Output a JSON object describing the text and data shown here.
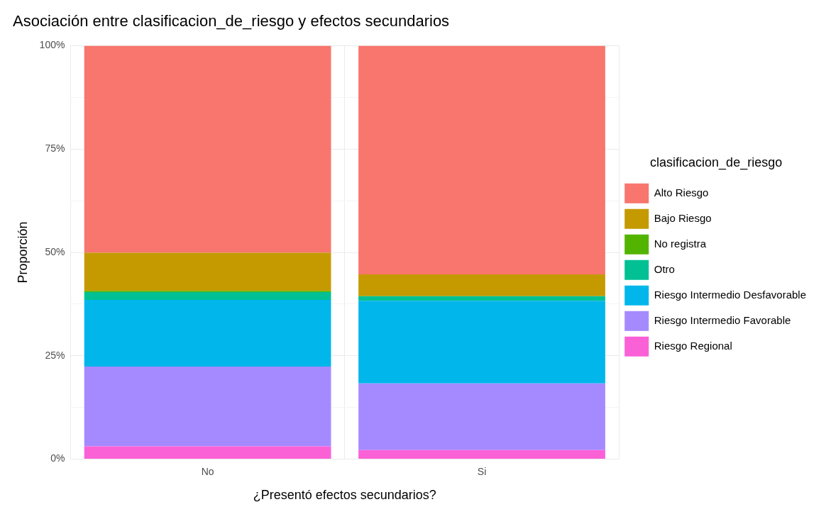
{
  "chart_data": {
    "type": "bar",
    "stacked": true,
    "title": "Asociación entre clasificacion_de_riesgo y efectos secundarios",
    "xlabel": "¿Presentó efectos secundarios?",
    "ylabel": "Proporción",
    "legend_title": "clasificacion_de_riesgo",
    "legend": "right",
    "grid": true,
    "categories": [
      "No",
      "Si"
    ],
    "ylim": [
      0,
      100
    ],
    "yticks": [
      {
        "value": 0,
        "label": "0%"
      },
      {
        "value": 12.5,
        "label": null
      },
      {
        "value": 25,
        "label": "25%"
      },
      {
        "value": 37.5,
        "label": null
      },
      {
        "value": 50,
        "label": "50%"
      },
      {
        "value": 62.5,
        "label": null
      },
      {
        "value": 75,
        "label": "75%"
      },
      {
        "value": 87.5,
        "label": null
      },
      {
        "value": 100,
        "label": "100%"
      }
    ],
    "series": [
      {
        "name": "Riesgo Regional",
        "color": "#fb61d7",
        "values": [
          3.1,
          2.2
        ]
      },
      {
        "name": "Riesgo Intermedio Favorable",
        "color": "#a58aff",
        "values": [
          19.3,
          16.1
        ]
      },
      {
        "name": "Riesgo Intermedio Desfavorable",
        "color": "#00b6eb",
        "values": [
          16.1,
          20.0
        ]
      },
      {
        "name": "Otro",
        "color": "#00c094",
        "values": [
          1.9,
          1.1
        ]
      },
      {
        "name": "No registra",
        "color": "#53b400",
        "values": [
          0.3,
          0
        ]
      },
      {
        "name": "Bajo Riesgo",
        "color": "#c49a00",
        "values": [
          9.2,
          5.3
        ]
      },
      {
        "name": "Alto Riesgo",
        "color": "#f8766d",
        "values": [
          50.1,
          55.3
        ]
      }
    ]
  }
}
